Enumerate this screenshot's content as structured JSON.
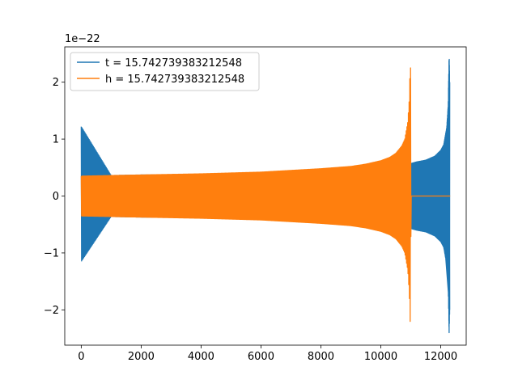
{
  "chart_data": {
    "type": "line",
    "title": "",
    "xlabel": "",
    "ylabel": "",
    "offset_text": "1e−22",
    "xlim": [
      -550,
      12850
    ],
    "ylim": [
      -2.62,
      2.62
    ],
    "xticks": [
      0,
      2000,
      4000,
      6000,
      8000,
      10000,
      12000
    ],
    "xtick_labels": [
      "0",
      "2000",
      "4000",
      "6000",
      "8000",
      "10000",
      "12000"
    ],
    "yticks": [
      -2,
      -1,
      0,
      1,
      2
    ],
    "ytick_labels": [
      "−2",
      "−1",
      "0",
      "1",
      "2"
    ],
    "grid": false,
    "legend_position": "top-left",
    "series": [
      {
        "name": "t = 15.742739383212548",
        "color": "#1f77b4",
        "envelope": {
          "x": [
            0,
            1000,
            2000,
            4000,
            6000,
            8000,
            9000,
            10000,
            11000,
            11200,
            11500,
            11800,
            12000,
            12100,
            12200,
            12250,
            12280,
            12300
          ],
          "upper": [
            1.22,
            0.36,
            0.37,
            0.38,
            0.41,
            0.44,
            0.47,
            0.5,
            0.57,
            0.6,
            0.63,
            0.7,
            0.8,
            0.9,
            1.2,
            1.6,
            2.5,
            2.0
          ],
          "lower": [
            -1.15,
            -0.36,
            -0.37,
            -0.38,
            -0.41,
            -0.44,
            -0.47,
            -0.5,
            -0.57,
            -0.6,
            -0.63,
            -0.7,
            -0.8,
            -0.9,
            -1.2,
            -1.6,
            -2.4,
            -2.0
          ]
        }
      },
      {
        "name": "h = 15.742739383212548",
        "color": "#ff7f0e",
        "envelope": {
          "x": [
            0,
            1000,
            2000,
            4000,
            6000,
            8000,
            9000,
            9500,
            10000,
            10300,
            10500,
            10700,
            10800,
            10900,
            10950,
            10990,
            11010,
            11050,
            12300
          ],
          "upper": [
            0.35,
            0.36,
            0.37,
            0.39,
            0.42,
            0.48,
            0.52,
            0.56,
            0.62,
            0.68,
            0.75,
            0.88,
            1.0,
            1.3,
            1.7,
            2.5,
            0.0,
            0.0,
            0.0
          ],
          "lower": [
            -0.35,
            -0.36,
            -0.37,
            -0.39,
            -0.42,
            -0.48,
            -0.52,
            -0.56,
            -0.62,
            -0.68,
            -0.75,
            -0.88,
            -1.0,
            -1.3,
            -1.7,
            -2.37,
            0.0,
            0.0,
            0.0
          ]
        }
      }
    ]
  }
}
